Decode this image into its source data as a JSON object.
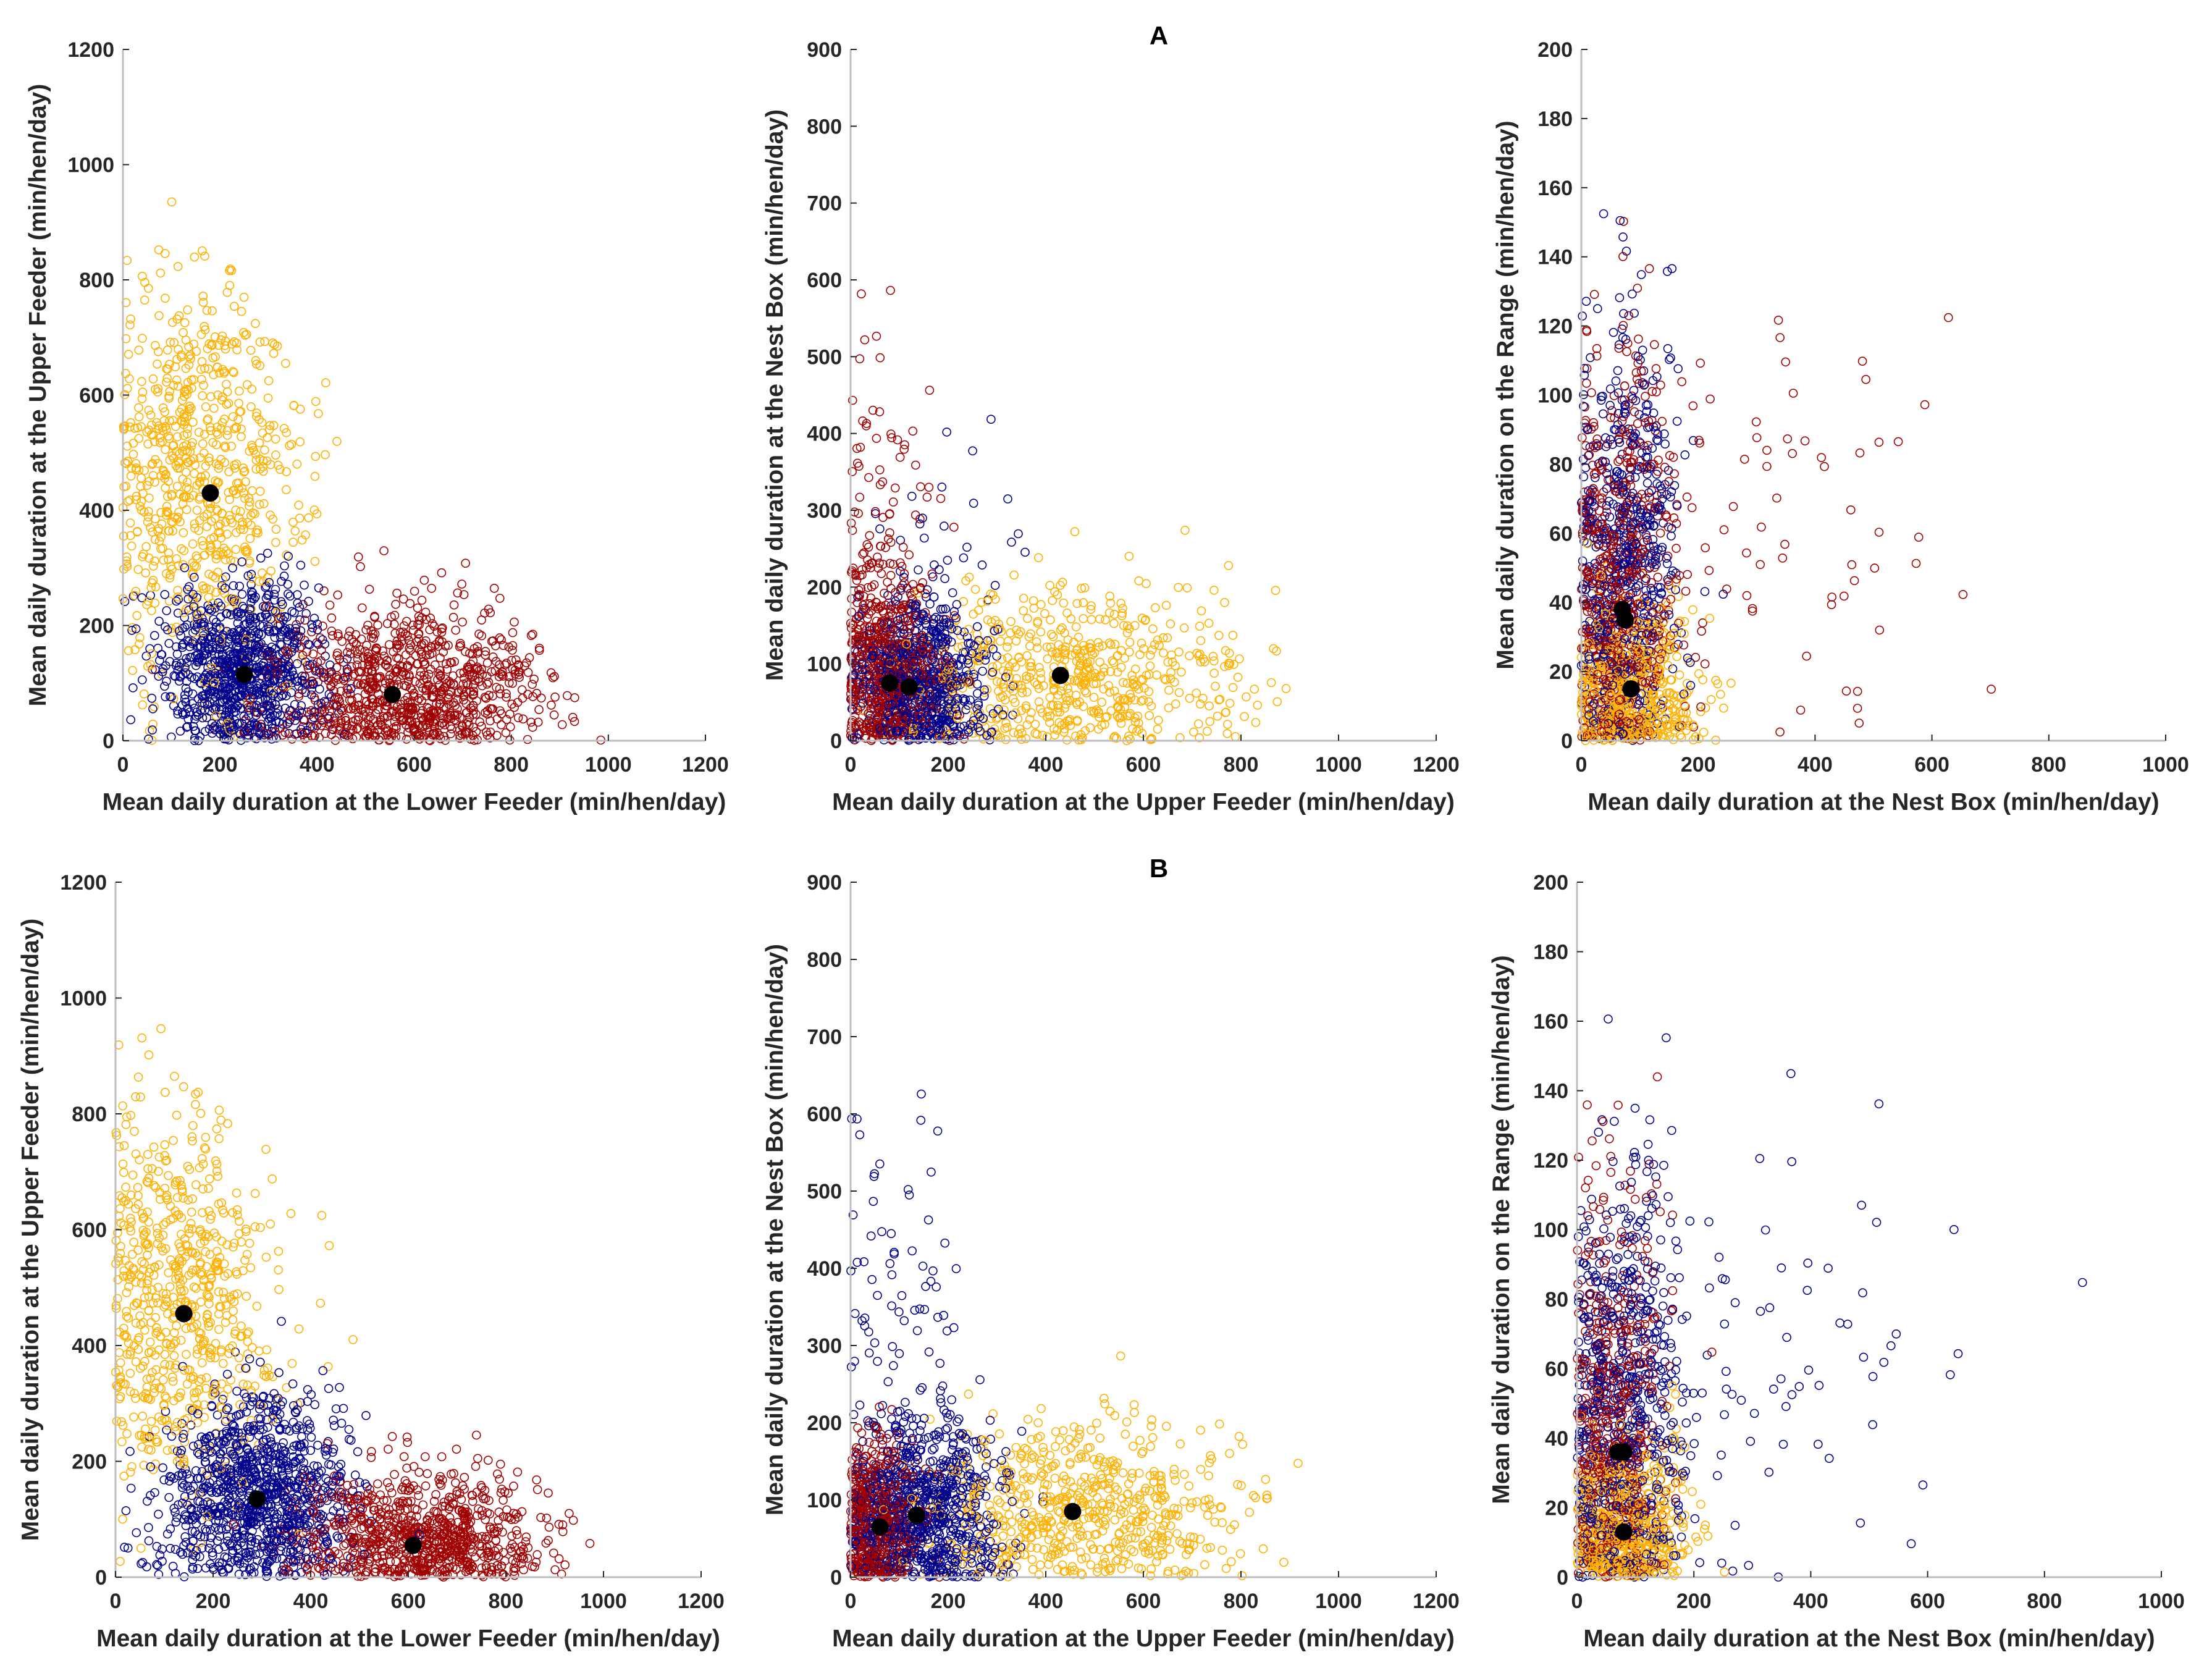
{
  "chart_data": [
    {
      "type": "scatter",
      "row": "A",
      "title": "",
      "xlabel": "Mean daily duration at the Lower Feeder (min/hen/day)",
      "ylabel": "Mean daily duration at the Upper Feeder (min/hen/day)",
      "xlim": [
        0,
        1200
      ],
      "ylim": [
        0,
        1200
      ],
      "xticks": [
        0,
        200,
        400,
        600,
        800,
        1000,
        1200
      ],
      "yticks": [
        0,
        200,
        400,
        600,
        800,
        1000,
        1200
      ],
      "clusters": [
        {
          "color": "#FFB000",
          "n": 700,
          "x": [
            160,
            110
          ],
          "y": [
            470,
            170
          ],
          "maxsum": 1050
        },
        {
          "color": "#00008B",
          "n": 900,
          "x": [
            250,
            85
          ],
          "y": [
            125,
            75
          ],
          "maxsum": 700
        },
        {
          "color": "#A00000",
          "n": 900,
          "x": [
            580,
            140
          ],
          "y": [
            85,
            75
          ],
          "maxsum": 1050
        }
      ],
      "centroids": [
        {
          "x": 180,
          "y": 430
        },
        {
          "x": 250,
          "y": 115
        },
        {
          "x": 555,
          "y": 80
        }
      ]
    },
    {
      "type": "scatter",
      "row": "A",
      "title": "A",
      "xlabel": "Mean daily duration at the Upper Feeder (min/hen/day)",
      "ylabel": "Mean daily duration at the Nest Box (min/hen/day)",
      "xlim": [
        0,
        1200
      ],
      "ylim": [
        0,
        900
      ],
      "xticks": [
        0,
        200,
        400,
        600,
        800,
        1000,
        1200
      ],
      "yticks": [
        0,
        100,
        200,
        300,
        400,
        500,
        600,
        700,
        800,
        900
      ],
      "clusters": [
        {
          "color": "#FFB000",
          "n": 600,
          "x": [
            460,
            170
          ],
          "y": [
            80,
            60
          ]
        },
        {
          "color": "#A00000",
          "n": 600,
          "x": [
            70,
            60
          ],
          "y": [
            80,
            70
          ]
        },
        {
          "color": "#A00000",
          "n": 90,
          "x": [
            60,
            60
          ],
          "y": [
            300,
            170
          ]
        },
        {
          "color": "#00008B",
          "n": 700,
          "x": [
            140,
            70
          ],
          "y": [
            75,
            55
          ]
        },
        {
          "color": "#00008B",
          "n": 40,
          "x": [
            180,
            90
          ],
          "y": [
            230,
            80
          ]
        }
      ],
      "centroids": [
        {
          "x": 80,
          "y": 75
        },
        {
          "x": 120,
          "y": 70
        },
        {
          "x": 430,
          "y": 85
        }
      ]
    },
    {
      "type": "scatter",
      "row": "A",
      "title": "",
      "xlabel": "Mean daily duration at the Nest Box (min/hen/day)",
      "ylabel": "Mean daily duration on the Range (min/hen/day)",
      "xlim": [
        0,
        1000
      ],
      "ylim": [
        0,
        200
      ],
      "xticks": [
        0,
        200,
        400,
        600,
        800,
        1000
      ],
      "yticks": [
        0,
        20,
        40,
        60,
        80,
        100,
        120,
        140,
        160,
        180,
        200
      ],
      "clusters": [
        {
          "color": "#A00000",
          "n": 600,
          "x": [
            60,
            50
          ],
          "y": [
            45,
            35
          ]
        },
        {
          "color": "#A00000",
          "n": 70,
          "x": [
            350,
            150
          ],
          "y": [
            60,
            35
          ]
        },
        {
          "color": "#00008B",
          "n": 600,
          "x": [
            75,
            50
          ],
          "y": [
            50,
            35
          ]
        },
        {
          "color": "#FFB000",
          "n": 500,
          "x": [
            80,
            60
          ],
          "y": [
            12,
            14
          ]
        }
      ],
      "centroids": [
        {
          "x": 70,
          "y": 38
        },
        {
          "x": 75,
          "y": 35
        },
        {
          "x": 85,
          "y": 15
        }
      ]
    },
    {
      "type": "scatter",
      "row": "B",
      "title": "",
      "xlabel": "Mean daily duration at the Lower Feeder (min/hen/day)",
      "ylabel": "Mean daily duration at the Upper Feeder (min/hen/day)",
      "xlim": [
        0,
        1200
      ],
      "ylim": [
        0,
        1200
      ],
      "xticks": [
        0,
        200,
        400,
        600,
        800,
        1000,
        1200
      ],
      "yticks": [
        0,
        200,
        400,
        600,
        800,
        1000,
        1200
      ],
      "clusters": [
        {
          "color": "#FFB000",
          "n": 650,
          "x": [
            130,
            100
          ],
          "y": [
            480,
            170
          ],
          "maxsum": 1050
        },
        {
          "color": "#00008B",
          "n": 1000,
          "x": [
            290,
            100
          ],
          "y": [
            140,
            90
          ],
          "maxsum": 800
        },
        {
          "color": "#A00000",
          "n": 800,
          "x": [
            620,
            130
          ],
          "y": [
            65,
            60
          ],
          "maxsum": 1050
        }
      ],
      "centroids": [
        {
          "x": 140,
          "y": 455
        },
        {
          "x": 290,
          "y": 135
        },
        {
          "x": 610,
          "y": 55
        }
      ]
    },
    {
      "type": "scatter",
      "row": "B",
      "title": "B",
      "xlabel": "Mean daily duration at the Upper Feeder (min/hen/day)",
      "ylabel": "Mean daily duration at the Nest Box (min/hen/day)",
      "xlim": [
        0,
        1200
      ],
      "ylim": [
        0,
        900
      ],
      "xticks": [
        0,
        200,
        400,
        600,
        800,
        1000,
        1200
      ],
      "yticks": [
        0,
        100,
        200,
        300,
        400,
        500,
        600,
        700,
        800,
        900
      ],
      "clusters": [
        {
          "color": "#FFB000",
          "n": 600,
          "x": [
            470,
            170
          ],
          "y": [
            85,
            60
          ]
        },
        {
          "color": "#A00000",
          "n": 500,
          "x": [
            50,
            45
          ],
          "y": [
            70,
            60
          ]
        },
        {
          "color": "#00008B",
          "n": 800,
          "x": [
            150,
            80
          ],
          "y": [
            80,
            60
          ]
        },
        {
          "color": "#00008B",
          "n": 100,
          "x": [
            80,
            70
          ],
          "y": [
            300,
            160
          ]
        }
      ],
      "centroids": [
        {
          "x": 60,
          "y": 65
        },
        {
          "x": 135,
          "y": 80
        },
        {
          "x": 455,
          "y": 85
        }
      ]
    },
    {
      "type": "scatter",
      "row": "B",
      "title": "",
      "xlabel": "Mean daily duration at the Nest Box (min/hen/day)",
      "ylabel": "Mean daily duration on the Range (min/hen/day)",
      "xlim": [
        0,
        1000
      ],
      "ylim": [
        0,
        200
      ],
      "xticks": [
        0,
        200,
        400,
        600,
        800,
        1000
      ],
      "yticks": [
        0,
        20,
        40,
        60,
        80,
        100,
        120,
        140,
        160,
        180,
        200
      ],
      "clusters": [
        {
          "color": "#A00000",
          "n": 500,
          "x": [
            60,
            45
          ],
          "y": [
            45,
            35
          ]
        },
        {
          "color": "#00008B",
          "n": 650,
          "x": [
            80,
            55
          ],
          "y": [
            48,
            35
          ]
        },
        {
          "color": "#00008B",
          "n": 70,
          "x": [
            350,
            150
          ],
          "y": [
            60,
            35
          ]
        },
        {
          "color": "#FFB000",
          "n": 500,
          "x": [
            80,
            60
          ],
          "y": [
            12,
            14
          ]
        }
      ],
      "centroids": [
        {
          "x": 70,
          "y": 36
        },
        {
          "x": 80,
          "y": 36
        },
        {
          "x": 80,
          "y": 13
        }
      ]
    }
  ]
}
